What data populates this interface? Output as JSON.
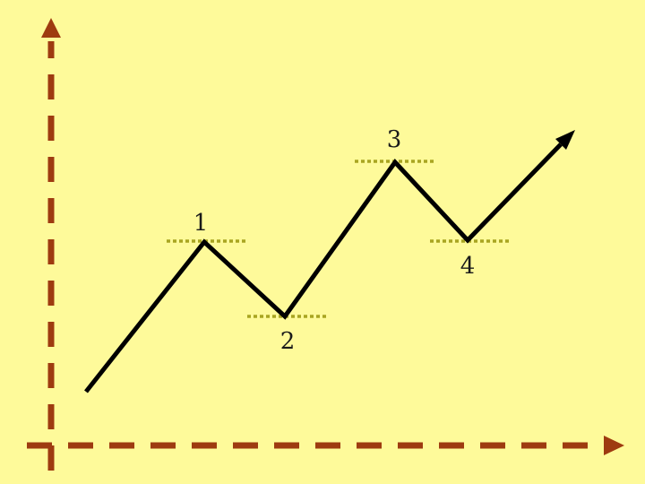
{
  "colors": {
    "background": "#fefa9a",
    "axis": "#9e3b10",
    "trend_line": "#000000",
    "level_line": "#a9a521",
    "label": "#1a1a1a"
  },
  "diagram": {
    "type": "uptrend-zigzag",
    "pivots": [
      {
        "label": "1",
        "kind": "peak"
      },
      {
        "label": "2",
        "kind": "trough"
      },
      {
        "label": "3",
        "kind": "peak"
      },
      {
        "label": "4",
        "kind": "trough"
      }
    ],
    "axes": {
      "style": "dashed",
      "arrowheads": true
    },
    "level_lines": {
      "style": "dotted"
    },
    "trend_arrow": true
  }
}
